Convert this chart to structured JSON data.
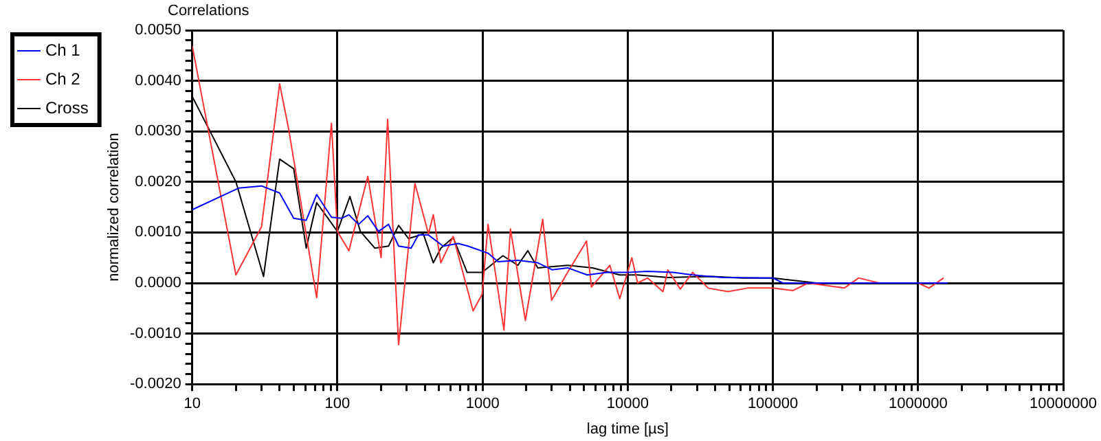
{
  "chart_data": {
    "type": "line",
    "title": "Correlations",
    "xlabel": "lag time [µs]",
    "ylabel": "normalized correlation",
    "log": "x",
    "grid": true,
    "legend": "top left",
    "marker": "none",
    "line_style": "solid",
    "xlim": [
      10,
      10000000
    ],
    "xticks": [
      10,
      {
        "value": 20,
        "label": null
      },
      {
        "value": 30,
        "label": null
      },
      {
        "value": 40,
        "label": null
      },
      {
        "value": 50,
        "label": null
      },
      {
        "value": 60,
        "label": null
      },
      {
        "value": 70,
        "label": null
      },
      {
        "value": 80,
        "label": null
      },
      {
        "value": 90,
        "label": null
      },
      100,
      {
        "value": 200,
        "label": null
      },
      {
        "value": 300,
        "label": null
      },
      {
        "value": 400,
        "label": null
      },
      {
        "value": 500,
        "label": null
      },
      {
        "value": 600,
        "label": null
      },
      {
        "value": 700,
        "label": null
      },
      {
        "value": 800,
        "label": null
      },
      {
        "value": 900,
        "label": null
      },
      1000,
      {
        "value": 2000,
        "label": null
      },
      {
        "value": 3000,
        "label": null
      },
      {
        "value": 4000,
        "label": null
      },
      {
        "value": 5000,
        "label": null
      },
      {
        "value": 6000,
        "label": null
      },
      {
        "value": 7000,
        "label": null
      },
      {
        "value": 8000,
        "label": null
      },
      {
        "value": 9000,
        "label": null
      },
      10000,
      {
        "value": 20000,
        "label": null
      },
      {
        "value": 30000,
        "label": null
      },
      {
        "value": 40000,
        "label": null
      },
      {
        "value": 50000,
        "label": null
      },
      {
        "value": 60000,
        "label": null
      },
      {
        "value": 70000,
        "label": null
      },
      {
        "value": 80000,
        "label": null
      },
      {
        "value": 90000,
        "label": null
      },
      100000,
      {
        "value": 200000,
        "label": null
      },
      {
        "value": 300000,
        "label": null
      },
      {
        "value": 400000,
        "label": null
      },
      {
        "value": 500000,
        "label": null
      },
      {
        "value": 600000,
        "label": null
      },
      {
        "value": 700000,
        "label": null
      },
      {
        "value": 800000,
        "label": null
      },
      {
        "value": 900000,
        "label": null
      },
      1000000,
      {
        "value": 2000000,
        "label": null
      },
      {
        "value": 3000000,
        "label": null
      },
      {
        "value": 4000000,
        "label": null
      },
      {
        "value": 5000000,
        "label": null
      },
      {
        "value": 6000000,
        "label": null
      },
      {
        "value": 7000000,
        "label": null
      },
      {
        "value": 8000000,
        "label": null
      },
      {
        "value": 9000000,
        "label": null
      },
      10000000
    ],
    "ylim": [
      -0.002,
      0.005
    ],
    "yticks": [
      {
        "value": -0.002,
        "label": "-0.0020"
      },
      {
        "value": -0.0018,
        "label": null
      },
      {
        "value": -0.0016,
        "label": null
      },
      {
        "value": -0.0014,
        "label": null
      },
      {
        "value": -0.0012,
        "label": null
      },
      {
        "value": -0.001,
        "label": "-0.0010"
      },
      {
        "value": -0.0008,
        "label": null
      },
      {
        "value": -0.0006,
        "label": null
      },
      {
        "value": -0.0004,
        "label": null
      },
      {
        "value": -0.0002,
        "label": null
      },
      {
        "value": 0,
        "label": "0.0000"
      },
      {
        "value": 0.0002,
        "label": null
      },
      {
        "value": 0.0004,
        "label": null
      },
      {
        "value": 0.0006,
        "label": null
      },
      {
        "value": 0.0008,
        "label": null
      },
      {
        "value": 0.001,
        "label": "0.0010"
      },
      {
        "value": 0.0012,
        "label": null
      },
      {
        "value": 0.0014,
        "label": null
      },
      {
        "value": 0.0016,
        "label": null
      },
      {
        "value": 0.0018,
        "label": null
      },
      {
        "value": 0.002,
        "label": "0.0020"
      },
      {
        "value": 0.0022,
        "label": null
      },
      {
        "value": 0.0024,
        "label": null
      },
      {
        "value": 0.0026,
        "label": null
      },
      {
        "value": 0.0028,
        "label": null
      },
      {
        "value": 0.003,
        "label": "0.0030"
      },
      {
        "value": 0.0032,
        "label": null
      },
      {
        "value": 0.0034,
        "label": null
      },
      {
        "value": 0.0036,
        "label": null
      },
      {
        "value": 0.0038,
        "label": null
      },
      {
        "value": 0.004,
        "label": "0.0040"
      },
      {
        "value": 0.0042,
        "label": null
      },
      {
        "value": 0.0044,
        "label": null
      },
      {
        "value": 0.0046,
        "label": null
      },
      {
        "value": 0.0048,
        "label": null
      },
      {
        "value": 0.005,
        "label": "0.0050"
      }
    ],
    "series": [
      {
        "name": "Ch 1",
        "color": "#0000ff",
        "x": [
          10,
          21,
          30,
          40,
          50,
          61,
          72,
          91,
          107,
          120,
          140,
          162,
          192,
          225,
          264,
          322,
          361,
          424,
          535,
          680,
          793,
          1091,
          1278,
          1750,
          2400,
          3030,
          3854,
          5266,
          7200,
          10200,
          13700,
          20500,
          28000,
          45000,
          100000,
          117000,
          320000,
          390000,
          1000000,
          1600000
        ],
        "values": [
          0.00145,
          0.00188,
          0.00192,
          0.00178,
          0.00128,
          0.00124,
          0.00175,
          0.0013,
          0.00128,
          0.00135,
          0.00116,
          0.00133,
          0.00102,
          0.00116,
          0.00073,
          0.00069,
          0.00095,
          0.00095,
          0.00073,
          0.00078,
          0.00073,
          0.00059,
          0.00042,
          0.00045,
          0.0004,
          0.00026,
          0.0003,
          0.00016,
          0.00021,
          0.00021,
          0.00023,
          0.00021,
          0.00016,
          0.00011,
          0.0001,
          0,
          0,
          0,
          0,
          0
        ]
      },
      {
        "name": "Ch 2",
        "color": "#ff3333",
        "x": [
          10,
          20,
          30,
          40,
          46,
          72,
          91,
          100,
          120,
          162,
          200,
          222,
          264,
          342,
          424,
          458,
          516,
          628,
          861,
          994,
          1091,
          1404,
          1556,
          1972,
          2596,
          2993,
          3854,
          5200,
          5623,
          7535,
          8810,
          10670,
          11700,
          13700,
          17500,
          18900,
          23000,
          28000,
          35800,
          49000,
          67000,
          100000,
          137000,
          175000,
          310000,
          390000,
          540000,
          1000000,
          1190000,
          1500000
        ],
        "values": [
          0.00469,
          0.00016,
          0.00111,
          0.00394,
          0.00307,
          -0.00029,
          0.00316,
          0.00102,
          0.00064,
          0.00211,
          0.0005,
          0.00324,
          -0.00122,
          0.00197,
          0.00097,
          0.00135,
          0.0004,
          0.00092,
          -0.00055,
          -0.00022,
          0.00116,
          -0.00093,
          0.00107,
          -0.00074,
          0.00126,
          -0.00034,
          0.00021,
          0.00083,
          -8e-05,
          0.00035,
          -0.00031,
          0.0005,
          0,
          0.0001,
          -0.00017,
          0.00026,
          -0.00012,
          0.00021,
          -0.0001,
          -0.00017,
          -0.0001,
          -0.0001,
          -0.00015,
          0,
          -0.0001,
          0.0001,
          0,
          0,
          -0.0001,
          0.0001
        ]
      },
      {
        "name": "Cross",
        "color": "#000000",
        "x": [
          10,
          20,
          31,
          40,
          50,
          61,
          72,
          100,
          122,
          144,
          181,
          225,
          264,
          309,
          391,
          458,
          516,
          628,
          783,
          994,
          1380,
          1750,
          2051,
          2400,
          3854,
          5715,
          8810,
          11700,
          18900,
          38700,
          62000,
          100000,
          200000,
          310000
        ],
        "values": [
          0.00369,
          0.002,
          0.00013,
          0.00245,
          0.00226,
          0.00069,
          0.00159,
          0.00102,
          0.00171,
          0.00102,
          0.00069,
          0.00073,
          0.00114,
          0.00088,
          0.00097,
          0.0004,
          0.00069,
          0.0009,
          0.00021,
          0.00021,
          0.00054,
          0.00035,
          0.00064,
          0.0003,
          0.00035,
          0.0003,
          0.00016,
          0.00016,
          0.00011,
          0.00013,
          0.0001,
          0.0001,
          0,
          0
        ]
      }
    ]
  }
}
